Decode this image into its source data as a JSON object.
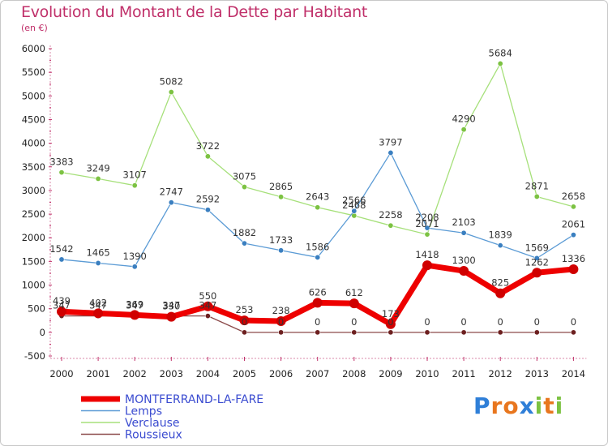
{
  "header": {
    "title": "Evolution du Montant de la Dette par Habitant",
    "unit": "(en €)"
  },
  "brand": {
    "name": "Proxiti",
    "letters": [
      {
        "ch": "P",
        "color": "#2f7fd8"
      },
      {
        "ch": "r",
        "color": "#e8761e"
      },
      {
        "ch": "o",
        "color": "#e8761e"
      },
      {
        "ch": "x",
        "color": "#2f7fd8"
      },
      {
        "ch": "i",
        "color": "#7cc242"
      },
      {
        "ch": "t",
        "color": "#e8761e"
      },
      {
        "ch": "i",
        "color": "#7cc242"
      }
    ]
  },
  "chart_data": {
    "type": "line",
    "title": "Evolution du Montant de la Dette par Habitant",
    "subtitle": "(en €)",
    "x": [
      "2000",
      "2001",
      "2002",
      "2003",
      "2004",
      "2005",
      "2006",
      "2007",
      "2008",
      "2009",
      "2010",
      "2011",
      "2012",
      "2013",
      "2014"
    ],
    "ylim": [
      -500,
      6000
    ],
    "yticks": [
      -500,
      0,
      500,
      1000,
      1500,
      2000,
      2500,
      3000,
      3500,
      4000,
      4500,
      5000,
      5500,
      6000
    ],
    "grid": false,
    "legend": "bottom-left",
    "series": [
      {
        "name": "MONTFERRAND-LA-FARE",
        "color": "#ee0000",
        "marker": "#d00000",
        "width": 7,
        "values": [
          439,
          402,
          369,
          330,
          550,
          253,
          238,
          626,
          612,
          173,
          1418,
          1300,
          825,
          1262,
          1336
        ]
      },
      {
        "name": "Lemps",
        "color": "#5b9bd5",
        "marker": "#3a7fc0",
        "width": 1.3,
        "values": [
          1542,
          1465,
          1390,
          2747,
          2592,
          1882,
          1733,
          1586,
          2566,
          3797,
          2208,
          2103,
          1839,
          1569,
          2061
        ]
      },
      {
        "name": "Verclause",
        "color": "#a6e07a",
        "marker": "#7cc242",
        "width": 1.3,
        "values": [
          3383,
          3249,
          3107,
          5082,
          3722,
          3075,
          2865,
          2643,
          2468,
          2258,
          2071,
          4290,
          5684,
          2871,
          2658
        ]
      },
      {
        "name": "Roussieux",
        "color": "#8b4a4a",
        "marker": "#6d2020",
        "width": 1.3,
        "values": [
          347,
          347,
          347,
          347,
          347,
          0,
          0,
          0,
          0,
          0,
          0,
          0,
          0,
          0,
          0
        ]
      }
    ]
  }
}
